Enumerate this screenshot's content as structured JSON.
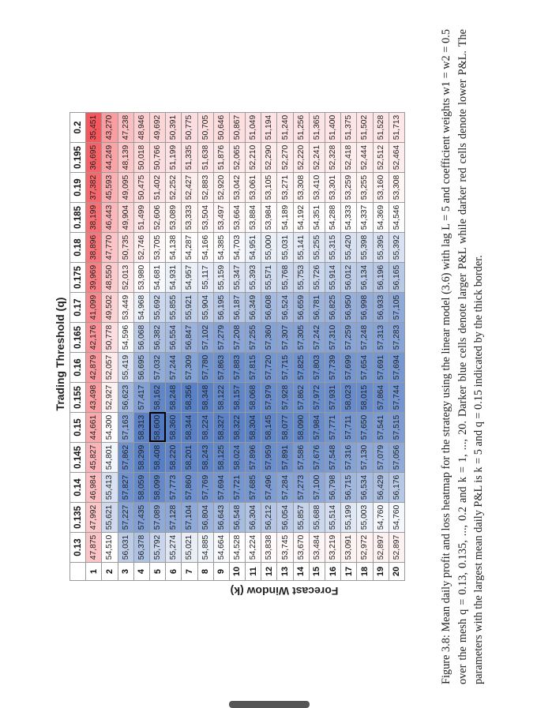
{
  "figure": {
    "x_axis_title": "Trading Threshold (q)",
    "y_axis_title": "Forecast Window (k)",
    "caption": "Figure 3.8: Mean daily profit and loss heatmap for the strategy using the linear model (3.6) with lag L = 5 and coefficient weights w1 = w2 = 0.5 over the mesh q = 0.13, 0.135, ..., 0.2 and k = 1, ..., 20. Darker blue cells denote larger P&L while darker red cells denote lower P&L. The parameters with the largest mean daily P&L is k = 5 and q = 0.15 indicated by the thick border."
  },
  "colors": {
    "low_red": "#f4585e",
    "mid_white": "#ffffff",
    "high_blue": "#4f79c2"
  },
  "chart_data": {
    "type": "heatmap",
    "x_label": "Trading Threshold (q)",
    "y_label": "Forecast Window (k)",
    "x": [
      "0.13",
      "0.135",
      "0.14",
      "0.145",
      "0.15",
      "0.155",
      "0.16",
      "0.165",
      "0.17",
      "0.175",
      "0.18",
      "0.185",
      "0.19",
      "0.195",
      "0.2"
    ],
    "y": [
      "1",
      "2",
      "3",
      "4",
      "5",
      "6",
      "7",
      "8",
      "9",
      "10",
      "11",
      "12",
      "13",
      "14",
      "15",
      "16",
      "17",
      "18",
      "19",
      "20"
    ],
    "best": {
      "k": "5",
      "q": "0.15"
    },
    "values": [
      [
        "47,875",
        "47,992",
        "46,984",
        "45,827",
        "44,661",
        "43,498",
        "42,879",
        "42,176",
        "41,099",
        "39,969",
        "38,896",
        "38,199",
        "37,382",
        "36,695",
        "35,451"
      ],
      [
        "54,510",
        "55,621",
        "55,413",
        "54,801",
        "54,300",
        "52,927",
        "52,057",
        "50,778",
        "49,502",
        "48,550",
        "47,770",
        "46,443",
        "45,593",
        "44,249",
        "43,270"
      ],
      [
        "56,031",
        "57,227",
        "57,827",
        "57,862",
        "57,163",
        "56,623",
        "55,419",
        "54,596",
        "53,449",
        "52,013",
        "50,735",
        "49,904",
        "49,095",
        "48,139",
        "47,238"
      ],
      [
        "56,378",
        "57,435",
        "58,059",
        "58,299",
        "58,313",
        "57,417",
        "56,695",
        "56,068",
        "54,968",
        "53,980",
        "52,746",
        "51,499",
        "50,475",
        "50,018",
        "48,946"
      ],
      [
        "55,792",
        "57,089",
        "58,099",
        "58,408",
        "58,600",
        "58,162",
        "57,032",
        "56,382",
        "55,692",
        "54,681",
        "53,705",
        "52,606",
        "51,402",
        "50,766",
        "49,692"
      ],
      [
        "55,274",
        "57,128",
        "57,773",
        "58,220",
        "58,360",
        "58,248",
        "57,244",
        "56,554",
        "55,855",
        "54,931",
        "54,138",
        "53,089",
        "52,252",
        "51,199",
        "50,391"
      ],
      [
        "55,021",
        "57,104",
        "57,860",
        "58,201",
        "58,344",
        "58,356",
        "57,309",
        "56,847",
        "55,921",
        "54,957",
        "54,287",
        "53,333",
        "52,427",
        "51,335",
        "50,775"
      ],
      [
        "54,885",
        "56,804",
        "57,769",
        "58,243",
        "58,224",
        "58,348",
        "57,780",
        "57,102",
        "55,904",
        "55,117",
        "54,166",
        "53,504",
        "52,883",
        "51,638",
        "50,705"
      ],
      [
        "54,664",
        "56,643",
        "57,694",
        "58,125",
        "58,327",
        "58,122",
        "57,863",
        "57,279",
        "56,195",
        "55,159",
        "54,385",
        "53,497",
        "52,920",
        "51,876",
        "50,646"
      ],
      [
        "54,528",
        "56,548",
        "57,721",
        "58,024",
        "58,322",
        "58,157",
        "57,883",
        "57,208",
        "56,187",
        "55,347",
        "54,703",
        "53,664",
        "53,042",
        "52,065",
        "50,867"
      ],
      [
        "54,224",
        "56,304",
        "57,685",
        "57,896",
        "58,304",
        "58,068",
        "57,815",
        "57,255",
        "56,349",
        "55,393",
        "54,951",
        "53,884",
        "53,061",
        "52,210",
        "51,049"
      ],
      [
        "53,838",
        "56,212",
        "57,496",
        "57,959",
        "58,145",
        "57,979",
        "57,720",
        "57,360",
        "56,608",
        "55,571",
        "55,000",
        "53,984",
        "53,105",
        "52,290",
        "51,194"
      ],
      [
        "53,745",
        "56,054",
        "57,284",
        "57,891",
        "58,077",
        "57,928",
        "57,715",
        "57,307",
        "56,524",
        "55,768",
        "55,031",
        "54,189",
        "53,271",
        "52,270",
        "51,240"
      ],
      [
        "53,670",
        "55,857",
        "57,273",
        "57,586",
        "58,090",
        "57,862",
        "57,825",
        "57,305",
        "56,659",
        "55,753",
        "55,141",
        "54,192",
        "53,308",
        "52,220",
        "51,256"
      ],
      [
        "53,484",
        "55,688",
        "57,100",
        "57,676",
        "57,984",
        "57,972",
        "57,803",
        "57,242",
        "56,781",
        "55,726",
        "55,255",
        "54,351",
        "53,410",
        "52,241",
        "51,365"
      ],
      [
        "53,219",
        "55,514",
        "56,798",
        "57,548",
        "57,771",
        "57,931",
        "57,739",
        "57,310",
        "56,825",
        "55,914",
        "55,315",
        "54,288",
        "53,301",
        "52,328",
        "51,400"
      ],
      [
        "53,091",
        "55,199",
        "56,715",
        "57,316",
        "57,711",
        "58,023",
        "57,699",
        "57,259",
        "56,950",
        "56,012",
        "55,420",
        "54,333",
        "53,259",
        "52,418",
        "51,375"
      ],
      [
        "52,972",
        "55,003",
        "56,534",
        "57,130",
        "57,650",
        "58,015",
        "57,654",
        "57,248",
        "56,998",
        "56,134",
        "55,398",
        "54,337",
        "53,255",
        "52,444",
        "51,502"
      ],
      [
        "52,897",
        "54,760",
        "56,429",
        "57,079",
        "57,541",
        "57,864",
        "57,691",
        "57,313",
        "56,933",
        "56,196",
        "55,395",
        "54,369",
        "53,160",
        "52,512",
        "51,528"
      ],
      [
        "52,897",
        "54,760",
        "56,176",
        "57,056",
        "57,515",
        "57,744",
        "57,694",
        "57,283",
        "57,105",
        "56,165",
        "55,392",
        "54,546",
        "53,308",
        "52,464",
        "51,713"
      ]
    ]
  }
}
